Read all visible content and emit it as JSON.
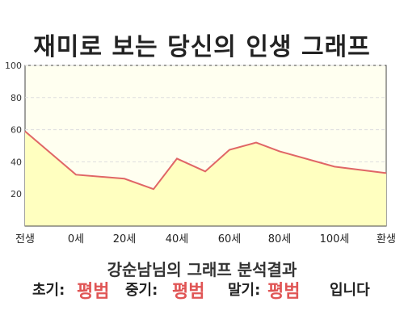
{
  "header": {
    "title": "재미로 보는 당신의 인생 그래프"
  },
  "summary": {
    "subtitle": "강순남님의 그래프 분석결과",
    "early_label": "초기:",
    "early_value": "평범",
    "mid_label": "중기:",
    "mid_value": "평범",
    "late_label": "말기:",
    "late_value": "평범",
    "ending": "입니다"
  },
  "colors": {
    "line": "#e06666",
    "fill": "#ffffc0",
    "plot_bg": "#fffff0",
    "highlight": "#e05555",
    "grid": "#dddddd"
  },
  "chart_data": {
    "type": "area",
    "title": "재미로 보는 당신의 인생 그래프",
    "x_tick_labels": [
      "전생",
      "0세",
      "20세",
      "40세",
      "60세",
      "80세",
      "100세",
      "환생"
    ],
    "y_ticks": [
      20,
      40,
      60,
      80,
      100
    ],
    "ylim": [
      0,
      100
    ],
    "grid": true,
    "series": [
      {
        "points": [
          {
            "x": "전생",
            "y": 59
          },
          {
            "x": "0세",
            "y": 32
          },
          {
            "x": "20세",
            "y": 29.5
          },
          {
            "x": "30세",
            "y": 23
          },
          {
            "x": "40세",
            "y": 42
          },
          {
            "x": "50세",
            "y": 34
          },
          {
            "x": "60세",
            "y": 47.5
          },
          {
            "x": "70세",
            "y": 52
          },
          {
            "x": "80세",
            "y": 46.5
          },
          {
            "x": "100세",
            "y": 37
          },
          {
            "x": "환생",
            "y": 33
          }
        ]
      }
    ]
  }
}
